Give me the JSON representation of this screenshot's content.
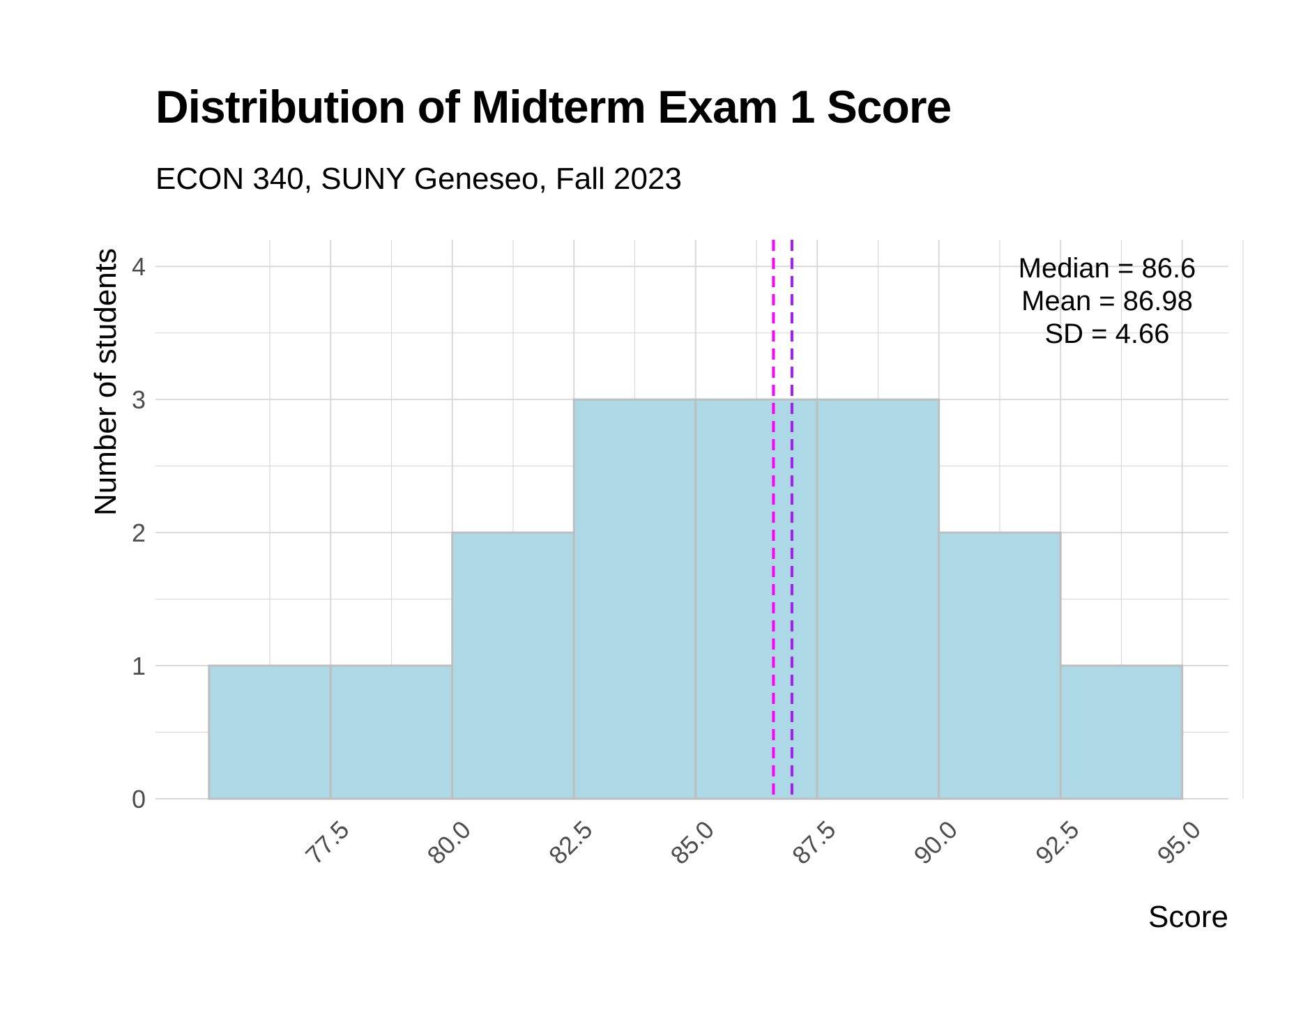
{
  "chart_data": {
    "type": "bar",
    "title": "Distribution of Midterm Exam 1 Score",
    "subtitle": "ECON 340, SUNY Geneseo, Fall 2023",
    "xlabel": "Score",
    "ylabel": "Number of students",
    "bins": [
      {
        "start": 75.0,
        "end": 77.5,
        "count": 1
      },
      {
        "start": 77.5,
        "end": 80.0,
        "count": 1
      },
      {
        "start": 80.0,
        "end": 82.5,
        "count": 2
      },
      {
        "start": 82.5,
        "end": 85.0,
        "count": 3
      },
      {
        "start": 85.0,
        "end": 87.5,
        "count": 3
      },
      {
        "start": 87.5,
        "end": 90.0,
        "count": 3
      },
      {
        "start": 90.0,
        "end": 92.5,
        "count": 2
      },
      {
        "start": 92.5,
        "end": 95.0,
        "count": 1
      }
    ],
    "x_ticks": [
      "77.5",
      "80.0",
      "82.5",
      "85.0",
      "87.5",
      "90.0",
      "92.5",
      "95.0"
    ],
    "x_tick_values": [
      77.5,
      80.0,
      82.5,
      85.0,
      87.5,
      90.0,
      92.5,
      95.0
    ],
    "y_ticks": [
      "0",
      "1",
      "2",
      "3",
      "4"
    ],
    "y_tick_values": [
      0,
      1,
      2,
      3,
      4
    ],
    "xlim": [
      73.9,
      95.95
    ],
    "ylim": [
      0,
      4.2
    ],
    "grid": true,
    "reference_lines": [
      {
        "name": "Median",
        "value": 86.6,
        "color": "#ff00ff",
        "style": "dashed"
      },
      {
        "name": "Mean",
        "value": 86.98,
        "color": "#a020f0",
        "style": "dashed"
      }
    ],
    "annotation": [
      "Median = 86.6",
      "Mean = 86.98",
      "SD = 4.66"
    ],
    "annotation_placement": "top-right",
    "bar_fill": "#add8e6",
    "bar_edge": "#bebebe",
    "grid_color": "#d9d9d9"
  }
}
